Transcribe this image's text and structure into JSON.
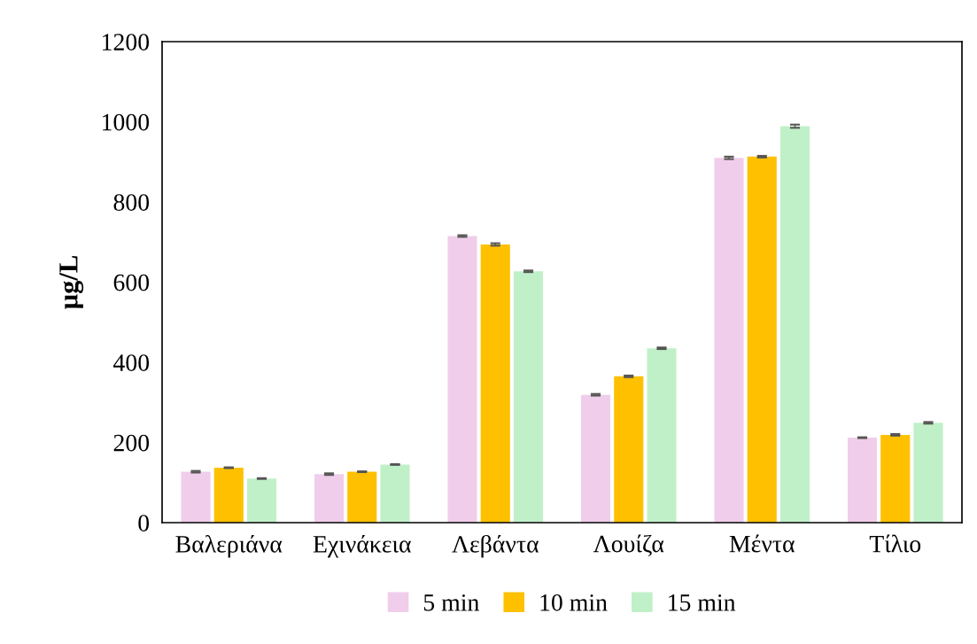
{
  "chart_data": {
    "type": "bar",
    "ylabel": "μg/L",
    "categories": [
      "Βαλεριάνα",
      "Εχινάκεια",
      "Λεβάντα",
      "Λουίζα",
      "Μέντα",
      "Τίλιο"
    ],
    "series": [
      {
        "name": "5 min",
        "color": "#f0cdea",
        "values": [
          127,
          121,
          715,
          319,
          910,
          212
        ],
        "errors": [
          2,
          2,
          2,
          2,
          3,
          1
        ]
      },
      {
        "name": "10 min",
        "color": "#ffc000",
        "values": [
          137,
          127,
          694,
          365,
          913,
          219
        ],
        "errors": [
          1,
          1,
          3,
          2,
          2,
          2
        ]
      },
      {
        "name": "15 min",
        "color": "#c0f0c8",
        "values": [
          110,
          145,
          627,
          435,
          989,
          249
        ],
        "errors": [
          1,
          1,
          2,
          2,
          4,
          2
        ]
      }
    ],
    "ylim": [
      0,
      1200
    ],
    "yticks": [
      0,
      200,
      400,
      600,
      800,
      1000,
      1200
    ],
    "grid": false,
    "legend": "bottom"
  }
}
